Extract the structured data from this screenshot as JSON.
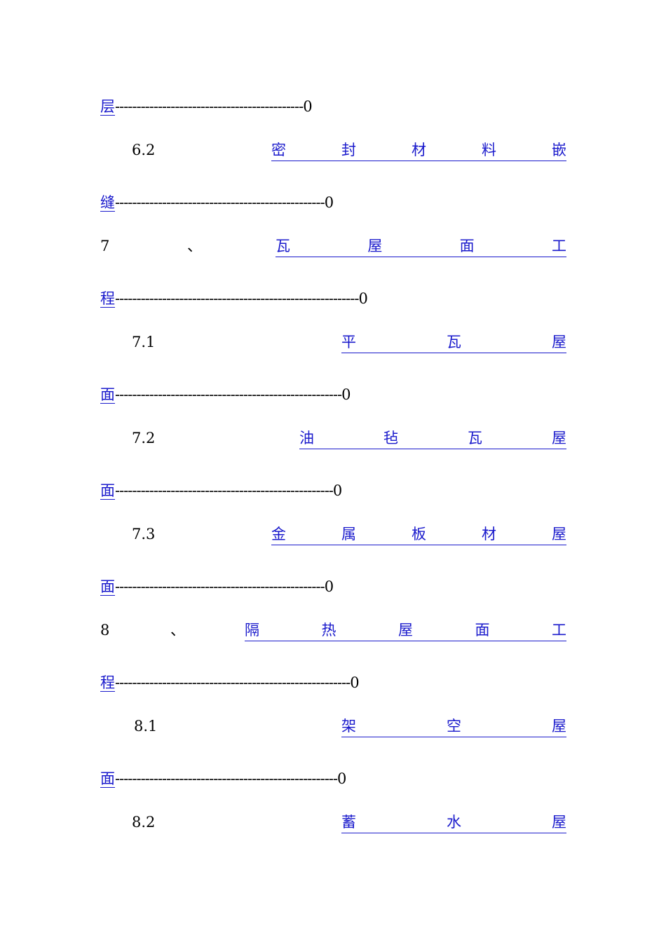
{
  "toc": [
    {
      "type": "tail",
      "first": "层",
      "dashes": "--------------------------------------------",
      "page": "0"
    },
    {
      "type": "head",
      "num": "6.2",
      "sep": "",
      "chars": [
        "密",
        "封",
        "材",
        "料",
        "嵌"
      ]
    },
    {
      "type": "tail",
      "first": "缝",
      "dashes": "-------------------------------------------------",
      "page": "0"
    },
    {
      "type": "head",
      "num": "7",
      "sep": "、",
      "chars": [
        "瓦",
        "屋",
        "面",
        "工"
      ]
    },
    {
      "type": "tail",
      "first": "程",
      "dashes": "---------------------------------------------------------",
      "page": "0"
    },
    {
      "type": "head",
      "num": "7.1",
      "sep": "",
      "chars": [
        "平",
        "瓦",
        "屋"
      ]
    },
    {
      "type": "tail",
      "first": "面",
      "dashes": "-----------------------------------------------------",
      "page": "0"
    },
    {
      "type": "head",
      "num": "7.2",
      "sep": "",
      "chars": [
        "油",
        "毡",
        "瓦",
        "屋"
      ]
    },
    {
      "type": "tail",
      "first": "面",
      "dashes": "---------------------------------------------------",
      "page": "0"
    },
    {
      "type": "head",
      "num": "7.3",
      "sep": "",
      "chars": [
        "金",
        "属",
        "板",
        "材",
        "屋"
      ]
    },
    {
      "type": "tail",
      "first": "面",
      "dashes": "-------------------------------------------------",
      "page": "0"
    },
    {
      "type": "head",
      "num": "8",
      "sep": "、",
      "chars": [
        "隔",
        "热",
        "屋",
        "面",
        "工"
      ]
    },
    {
      "type": "tail",
      "first": "程",
      "dashes": "-------------------------------------------------------",
      "page": "0"
    },
    {
      "type": "head",
      "num": "8.1",
      "sep": "",
      "chars": [
        "架",
        "空",
        "屋"
      ]
    },
    {
      "type": "tail",
      "first": "面",
      "dashes": "----------------------------------------------------",
      "page": "0"
    },
    {
      "type": "head",
      "num": "8.2",
      "sep": "",
      "chars": [
        "蓄",
        "水",
        "屋"
      ]
    }
  ]
}
